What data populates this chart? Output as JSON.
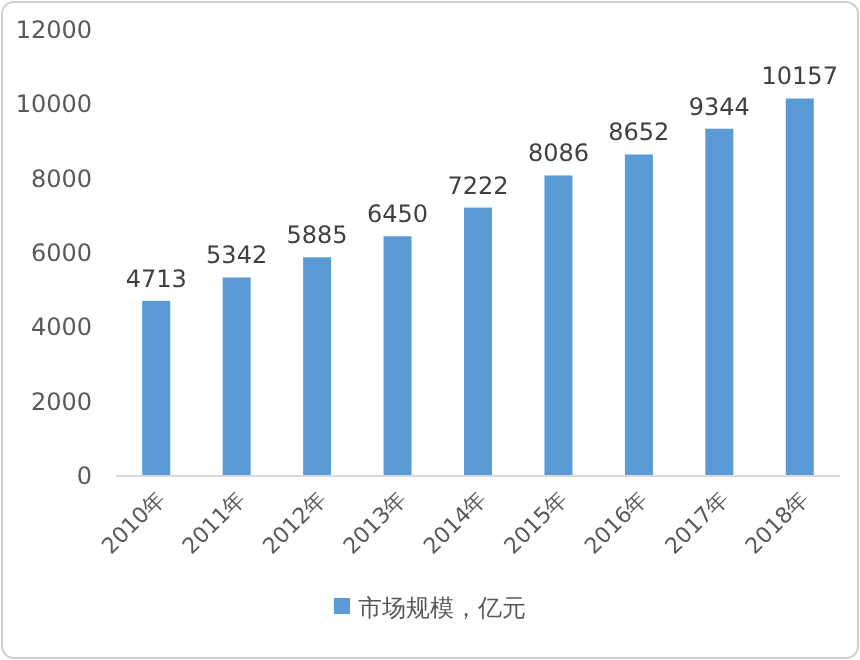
{
  "chart_data": {
    "type": "bar",
    "categories": [
      "2010年",
      "2011年",
      "2012年",
      "2013年",
      "2014年",
      "2015年",
      "2016年",
      "2017年",
      "2018年"
    ],
    "series": [
      {
        "name": "市场规模，亿元",
        "color": "#5b9bd5",
        "values": [
          4713,
          5342,
          5885,
          6450,
          7222,
          8086,
          8652,
          9344,
          10157
        ]
      }
    ],
    "ylim": [
      0,
      12000
    ],
    "yticks": [
      0,
      2000,
      4000,
      6000,
      8000,
      10000,
      12000
    ],
    "data_labels": true,
    "legend": "bottom"
  }
}
